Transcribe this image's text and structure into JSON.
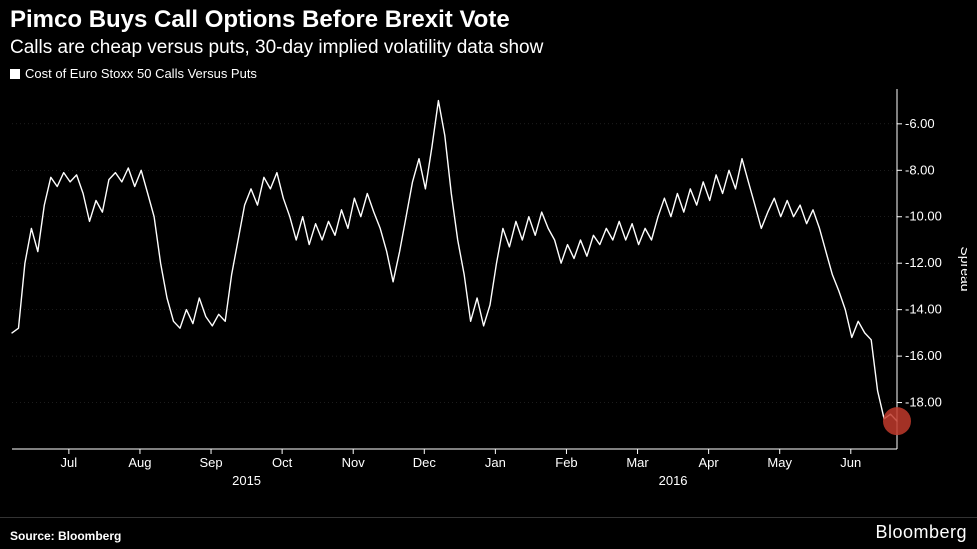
{
  "header": {
    "title": "Pimco Buys Call Options Before Brexit Vote",
    "subtitle": "Calls are cheap versus puts, 30-day implied volatility data show"
  },
  "legend": {
    "series_label": "Cost of Euro Stoxx 50 Calls Versus Puts",
    "swatch_color": "#ffffff"
  },
  "chart": {
    "type": "line",
    "background_color": "#000000",
    "line_color": "#ffffff",
    "line_width": 1.4,
    "grid_color": "#3a3a3a",
    "grid_width": 0.5,
    "tick_color": "#ffffff",
    "tick_fontsize": 13,
    "axis_label": "Spread",
    "axis_label_fontsize": 14,
    "marker": {
      "color": "#c0392b",
      "radius": 14,
      "opacity": 0.85
    },
    "y_axis": {
      "min": -20.0,
      "max": -4.5,
      "ticks": [
        -6.0,
        -8.0,
        -10.0,
        -12.0,
        -14.0,
        -16.0,
        -18.0
      ],
      "tick_labels": [
        "-6.00",
        "-8.00",
        "-10.00",
        "-12.00",
        "-14.00",
        "-16.00",
        "-18.00"
      ]
    },
    "x_axis": {
      "months": [
        "Jul",
        "Aug",
        "Sep",
        "Oct",
        "Nov",
        "Dec",
        "Jan",
        "Feb",
        "Mar",
        "Apr",
        "May",
        "Jun"
      ],
      "month_positions": [
        1,
        2,
        3,
        4,
        5,
        6,
        7,
        8,
        9,
        10,
        11,
        12
      ],
      "year_labels": [
        {
          "label": "2015",
          "pos": 3.5
        },
        {
          "label": "2016",
          "pos": 9.5
        }
      ],
      "min": 0.2,
      "max": 12.65
    },
    "series": {
      "values": [
        -15.0,
        -14.8,
        -12.0,
        -10.5,
        -11.5,
        -9.5,
        -8.3,
        -8.7,
        -8.1,
        -8.5,
        -8.2,
        -9.0,
        -10.2,
        -9.3,
        -9.8,
        -8.4,
        -8.1,
        -8.5,
        -7.9,
        -8.7,
        -8.0,
        -9.0,
        -10.0,
        -12.0,
        -13.5,
        -14.5,
        -14.8,
        -14.0,
        -14.6,
        -13.5,
        -14.3,
        -14.7,
        -14.2,
        -14.5,
        -12.5,
        -11.0,
        -9.5,
        -8.8,
        -9.5,
        -8.3,
        -8.8,
        -8.1,
        -9.2,
        -10.0,
        -11.0,
        -10.0,
        -11.2,
        -10.3,
        -11.0,
        -10.2,
        -10.8,
        -9.7,
        -10.5,
        -9.2,
        -10.0,
        -9.0,
        -9.8,
        -10.5,
        -11.5,
        -12.8,
        -11.5,
        -10.0,
        -8.5,
        -7.5,
        -8.8,
        -7.0,
        -5.0,
        -6.5,
        -9.0,
        -11.0,
        -12.5,
        -14.5,
        -13.5,
        -14.7,
        -13.8,
        -12.0,
        -10.5,
        -11.3,
        -10.2,
        -11.0,
        -10.0,
        -10.8,
        -9.8,
        -10.5,
        -11.0,
        -12.0,
        -11.2,
        -11.8,
        -11.0,
        -11.7,
        -10.8,
        -11.2,
        -10.5,
        -11.0,
        -10.2,
        -11.0,
        -10.3,
        -11.2,
        -10.5,
        -11.0,
        -10.0,
        -9.2,
        -10.0,
        -9.0,
        -9.8,
        -8.8,
        -9.5,
        -8.5,
        -9.3,
        -8.2,
        -9.0,
        -8.0,
        -8.8,
        -7.5,
        -8.5,
        -9.5,
        -10.5,
        -9.8,
        -9.2,
        -10.0,
        -9.3,
        -10.0,
        -9.5,
        -10.3,
        -9.7,
        -10.5,
        -11.5,
        -12.5,
        -13.2,
        -14.0,
        -15.2,
        -14.5,
        -15.0,
        -15.3,
        -17.5,
        -18.7,
        -18.5,
        -18.8
      ]
    }
  },
  "footer": {
    "source": "Source: Bloomberg",
    "brand": "Bloomberg"
  }
}
